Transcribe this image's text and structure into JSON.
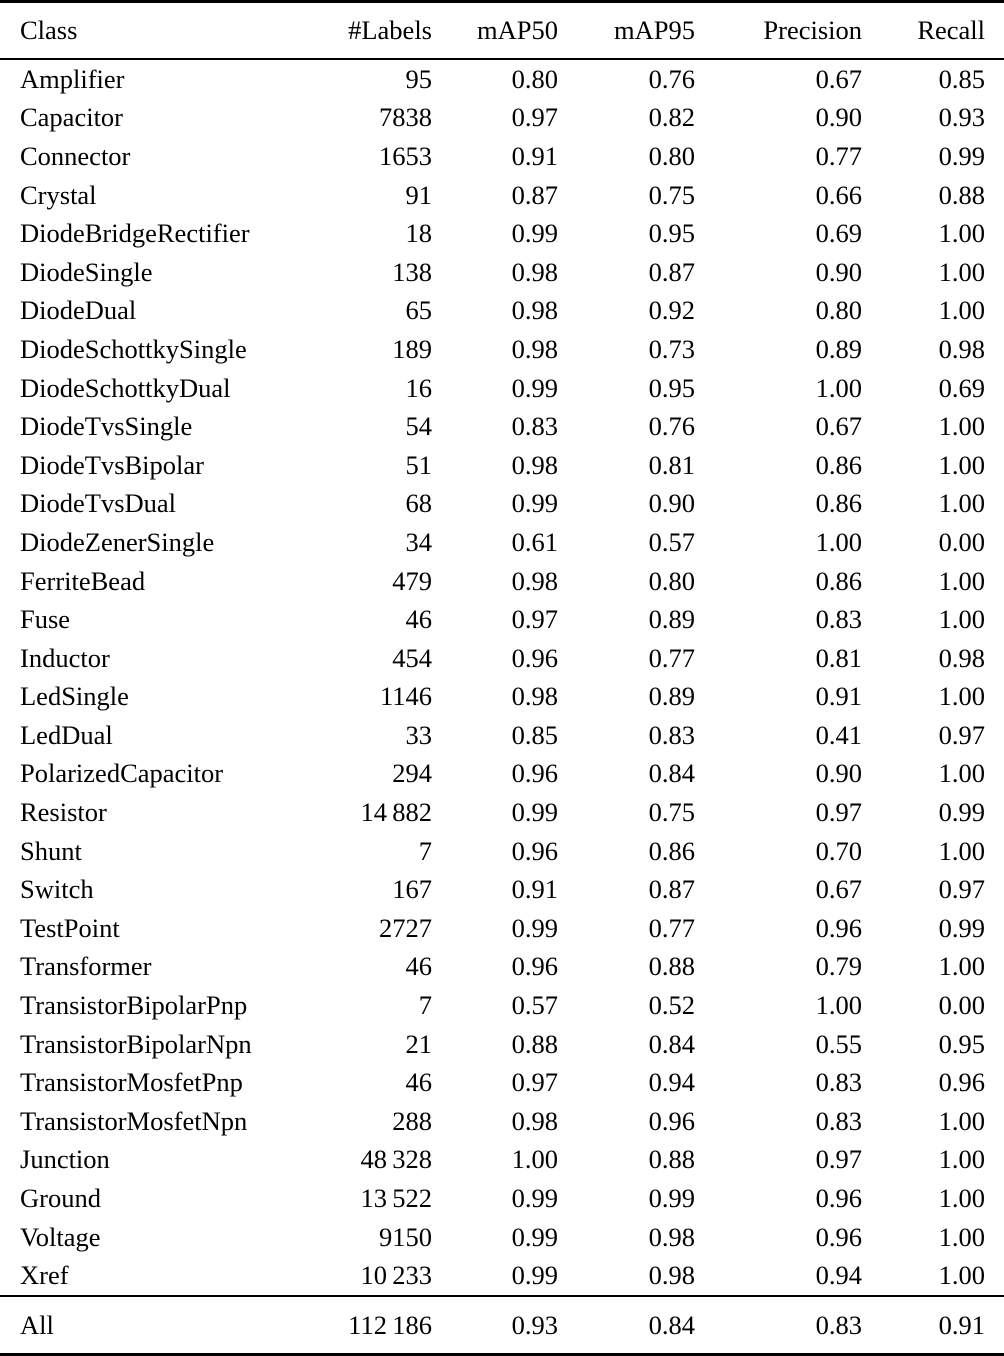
{
  "page": {
    "background_color": "#ffffff",
    "text_color": "#000000"
  },
  "table": {
    "columns": [
      "Class",
      "#Labels",
      "mAP50",
      "mAP95",
      "Precision",
      "Recall"
    ],
    "rows": [
      [
        "Amplifier",
        "95",
        "0.80",
        "0.76",
        "0.67",
        "0.85"
      ],
      [
        "Capacitor",
        "7838",
        "0.97",
        "0.82",
        "0.90",
        "0.93"
      ],
      [
        "Connector",
        "1653",
        "0.91",
        "0.80",
        "0.77",
        "0.99"
      ],
      [
        "Crystal",
        "91",
        "0.87",
        "0.75",
        "0.66",
        "0.88"
      ],
      [
        "DiodeBridgeRectifier",
        "18",
        "0.99",
        "0.95",
        "0.69",
        "1.00"
      ],
      [
        "DiodeSingle",
        "138",
        "0.98",
        "0.87",
        "0.90",
        "1.00"
      ],
      [
        "DiodeDual",
        "65",
        "0.98",
        "0.92",
        "0.80",
        "1.00"
      ],
      [
        "DiodeSchottkySingle",
        "189",
        "0.98",
        "0.73",
        "0.89",
        "0.98"
      ],
      [
        "DiodeSchottkyDual",
        "16",
        "0.99",
        "0.95",
        "1.00",
        "0.69"
      ],
      [
        "DiodeTvsSingle",
        "54",
        "0.83",
        "0.76",
        "0.67",
        "1.00"
      ],
      [
        "DiodeTvsBipolar",
        "51",
        "0.98",
        "0.81",
        "0.86",
        "1.00"
      ],
      [
        "DiodeTvsDual",
        "68",
        "0.99",
        "0.90",
        "0.86",
        "1.00"
      ],
      [
        "DiodeZenerSingle",
        "34",
        "0.61",
        "0.57",
        "1.00",
        "0.00"
      ],
      [
        "FerriteBead",
        "479",
        "0.98",
        "0.80",
        "0.86",
        "1.00"
      ],
      [
        "Fuse",
        "46",
        "0.97",
        "0.89",
        "0.83",
        "1.00"
      ],
      [
        "Inductor",
        "454",
        "0.96",
        "0.77",
        "0.81",
        "0.98"
      ],
      [
        "LedSingle",
        "1146",
        "0.98",
        "0.89",
        "0.91",
        "1.00"
      ],
      [
        "LedDual",
        "33",
        "0.85",
        "0.83",
        "0.41",
        "0.97"
      ],
      [
        "PolarizedCapacitor",
        "294",
        "0.96",
        "0.84",
        "0.90",
        "1.00"
      ],
      [
        "Resistor",
        "14 882",
        "0.99",
        "0.75",
        "0.97",
        "0.99"
      ],
      [
        "Shunt",
        "7",
        "0.96",
        "0.86",
        "0.70",
        "1.00"
      ],
      [
        "Switch",
        "167",
        "0.91",
        "0.87",
        "0.67",
        "0.97"
      ],
      [
        "TestPoint",
        "2727",
        "0.99",
        "0.77",
        "0.96",
        "0.99"
      ],
      [
        "Transformer",
        "46",
        "0.96",
        "0.88",
        "0.79",
        "1.00"
      ],
      [
        "TransistorBipolarPnp",
        "7",
        "0.57",
        "0.52",
        "1.00",
        "0.00"
      ],
      [
        "TransistorBipolarNpn",
        "21",
        "0.88",
        "0.84",
        "0.55",
        "0.95"
      ],
      [
        "TransistorMosfetPnp",
        "46",
        "0.97",
        "0.94",
        "0.83",
        "0.96"
      ],
      [
        "TransistorMosfetNpn",
        "288",
        "0.98",
        "0.96",
        "0.83",
        "1.00"
      ],
      [
        "Junction",
        "48 328",
        "1.00",
        "0.88",
        "0.97",
        "1.00"
      ],
      [
        "Ground",
        "13 522",
        "0.99",
        "0.99",
        "0.96",
        "1.00"
      ],
      [
        "Voltage",
        "9150",
        "0.99",
        "0.98",
        "0.96",
        "1.00"
      ],
      [
        "Xref",
        "10 233",
        "0.99",
        "0.98",
        "0.94",
        "1.00"
      ]
    ],
    "footer": [
      "All",
      "112 186",
      "0.93",
      "0.84",
      "0.83",
      "0.91"
    ]
  }
}
